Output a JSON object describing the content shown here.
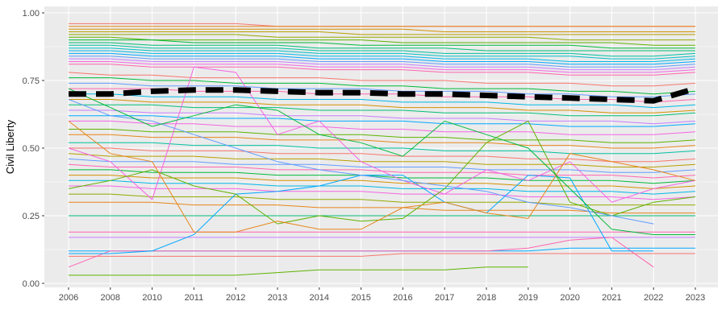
{
  "chart_data": {
    "type": "line",
    "title": "",
    "xlabel": "",
    "ylabel": "Civil Liberty",
    "x": [
      2006,
      2008,
      2010,
      2011,
      2012,
      2013,
      2014,
      2015,
      2016,
      2017,
      2018,
      2019,
      2020,
      2021,
      2022,
      2023
    ],
    "x_tick_labels": [
      "2006",
      "2008",
      "2010",
      "2011",
      "2012",
      "2013",
      "2014",
      "2015",
      "2016",
      "2017",
      "2018",
      "2019",
      "2020",
      "2021",
      "2022",
      "2023"
    ],
    "x_axis_spacing": "categorical (evenly spaced years)",
    "ylim": [
      0,
      1
    ],
    "y_ticks": [
      0.0,
      0.25,
      0.5,
      0.75,
      1.0
    ],
    "y_tick_labels": [
      "0.00",
      "0.25",
      "0.50",
      "0.75",
      "1.00"
    ],
    "grid": true,
    "legend": "none",
    "background": "#ebebeb",
    "gridline_color": "#ffffff",
    "mean_series": {
      "name": "",
      "style": "black thick dashed",
      "color": "#000000",
      "values": [
        0.7,
        0.7,
        0.71,
        0.715,
        0.715,
        0.71,
        0.705,
        0.705,
        0.7,
        0.7,
        0.695,
        0.69,
        0.685,
        0.68,
        0.675,
        0.72
      ]
    },
    "series_count_approx": 160,
    "series_note": "Many country lines with hue-based palette; values are approximate readings of representative series.",
    "series": [
      {
        "color": "#F8766D",
        "values": [
          0.96,
          0.96,
          0.96,
          0.96,
          0.96,
          0.95,
          0.95,
          0.95,
          0.95,
          0.95,
          0.95,
          0.95,
          0.95,
          0.95,
          0.95,
          0.95
        ]
      },
      {
        "color": "#E7861B",
        "values": [
          0.95,
          0.95,
          0.95,
          0.95,
          0.95,
          0.95,
          0.95,
          0.95,
          0.95,
          0.95,
          0.95,
          0.95,
          0.95,
          0.95,
          0.95,
          0.95
        ]
      },
      {
        "color": "#D39200",
        "values": [
          0.94,
          0.94,
          0.94,
          0.94,
          0.94,
          0.94,
          0.94,
          0.94,
          0.94,
          0.93,
          0.93,
          0.93,
          0.93,
          0.93,
          0.93,
          0.93
        ]
      },
      {
        "color": "#B79F00",
        "values": [
          0.93,
          0.93,
          0.93,
          0.93,
          0.93,
          0.93,
          0.93,
          0.92,
          0.92,
          0.92,
          0.92,
          0.92,
          0.92,
          0.92,
          0.92,
          0.92
        ]
      },
      {
        "color": "#93AA00",
        "values": [
          0.92,
          0.92,
          0.92,
          0.92,
          0.92,
          0.91,
          0.91,
          0.91,
          0.91,
          0.91,
          0.91,
          0.91,
          0.9,
          0.9,
          0.9,
          0.9
        ]
      },
      {
        "color": "#5EB300",
        "values": [
          0.91,
          0.91,
          0.9,
          0.9,
          0.9,
          0.9,
          0.9,
          0.9,
          0.89,
          0.89,
          0.89,
          0.89,
          0.89,
          0.89,
          0.88,
          0.88
        ]
      },
      {
        "color": "#00BA38",
        "values": [
          0.9,
          0.9,
          0.9,
          0.89,
          0.89,
          0.89,
          0.89,
          0.88,
          0.88,
          0.88,
          0.88,
          0.88,
          0.88,
          0.87,
          0.87,
          0.87
        ]
      },
      {
        "color": "#00BF74",
        "values": [
          0.89,
          0.89,
          0.88,
          0.88,
          0.88,
          0.88,
          0.87,
          0.87,
          0.87,
          0.87,
          0.86,
          0.86,
          0.86,
          0.86,
          0.86,
          0.86
        ]
      },
      {
        "color": "#00C19F",
        "values": [
          0.88,
          0.88,
          0.87,
          0.87,
          0.87,
          0.87,
          0.86,
          0.86,
          0.86,
          0.85,
          0.85,
          0.85,
          0.85,
          0.84,
          0.84,
          0.85
        ]
      },
      {
        "color": "#00BFC4",
        "values": [
          0.87,
          0.87,
          0.86,
          0.86,
          0.86,
          0.86,
          0.85,
          0.85,
          0.85,
          0.84,
          0.84,
          0.84,
          0.84,
          0.83,
          0.83,
          0.84
        ]
      },
      {
        "color": "#00B8E7",
        "values": [
          0.86,
          0.86,
          0.85,
          0.85,
          0.85,
          0.85,
          0.84,
          0.84,
          0.84,
          0.83,
          0.83,
          0.83,
          0.82,
          0.82,
          0.82,
          0.83
        ]
      },
      {
        "color": "#00A9FF",
        "values": [
          0.85,
          0.85,
          0.84,
          0.84,
          0.84,
          0.84,
          0.83,
          0.83,
          0.83,
          0.82,
          0.82,
          0.82,
          0.81,
          0.81,
          0.81,
          0.82
        ]
      },
      {
        "color": "#619CFF",
        "values": [
          0.84,
          0.84,
          0.83,
          0.83,
          0.83,
          0.83,
          0.82,
          0.82,
          0.82,
          0.81,
          0.81,
          0.81,
          0.8,
          0.8,
          0.8,
          0.81
        ]
      },
      {
        "color": "#C77CFF",
        "values": [
          0.83,
          0.83,
          0.82,
          0.82,
          0.82,
          0.82,
          0.81,
          0.81,
          0.81,
          0.8,
          0.8,
          0.8,
          0.79,
          0.79,
          0.79,
          0.8
        ]
      },
      {
        "color": "#F564E3",
        "values": [
          0.82,
          0.82,
          0.81,
          0.81,
          0.81,
          0.81,
          0.8,
          0.8,
          0.8,
          0.79,
          0.79,
          0.79,
          0.78,
          0.78,
          0.78,
          0.79
        ]
      },
      {
        "color": "#FF64B0",
        "values": [
          0.81,
          0.81,
          0.8,
          0.8,
          0.8,
          0.8,
          0.79,
          0.79,
          0.79,
          0.78,
          0.78,
          0.78,
          0.77,
          0.77,
          0.77,
          0.78
        ]
      },
      {
        "color": "#F8766D",
        "values": [
          0.78,
          0.77,
          0.77,
          0.76,
          0.76,
          0.76,
          0.76,
          0.75,
          0.75,
          0.75,
          0.74,
          0.74,
          0.74,
          0.73,
          0.73,
          0.74
        ]
      },
      {
        "color": "#00BA38",
        "values": [
          0.76,
          0.76,
          0.75,
          0.75,
          0.74,
          0.74,
          0.74,
          0.73,
          0.73,
          0.72,
          0.72,
          0.72,
          0.71,
          0.71,
          0.7,
          0.71
        ]
      },
      {
        "color": "#619CFF",
        "values": [
          0.74,
          0.74,
          0.73,
          0.73,
          0.73,
          0.72,
          0.72,
          0.72,
          0.71,
          0.71,
          0.71,
          0.7,
          0.7,
          0.69,
          0.69,
          0.7
        ]
      },
      {
        "color": "#FF64B0",
        "values": [
          0.72,
          0.72,
          0.72,
          0.71,
          0.71,
          0.71,
          0.7,
          0.7,
          0.7,
          0.69,
          0.69,
          0.69,
          0.68,
          0.68,
          0.67,
          0.68
        ]
      },
      {
        "color": "#00B8E7",
        "values": [
          0.7,
          0.7,
          0.69,
          0.69,
          0.69,
          0.68,
          0.68,
          0.68,
          0.67,
          0.67,
          0.67,
          0.66,
          0.66,
          0.66,
          0.65,
          0.66
        ]
      },
      {
        "color": "#D39200",
        "values": [
          0.68,
          0.68,
          0.67,
          0.67,
          0.67,
          0.66,
          0.66,
          0.66,
          0.65,
          0.65,
          0.65,
          0.64,
          0.64,
          0.63,
          0.63,
          0.64
        ]
      },
      {
        "color": "#00BF74",
        "values": [
          0.66,
          0.66,
          0.66,
          0.65,
          0.65,
          0.65,
          0.64,
          0.64,
          0.64,
          0.63,
          0.63,
          0.63,
          0.62,
          0.62,
          0.62,
          0.63
        ]
      },
      {
        "color": "#C77CFF",
        "values": [
          0.64,
          0.64,
          0.63,
          0.63,
          0.63,
          0.62,
          0.62,
          0.62,
          0.61,
          0.61,
          0.61,
          0.6,
          0.6,
          0.6,
          0.59,
          0.6
        ]
      },
      {
        "color": "#00A9FF",
        "values": [
          0.62,
          0.62,
          0.62,
          0.61,
          0.61,
          0.61,
          0.6,
          0.6,
          0.6,
          0.59,
          0.59,
          0.59,
          0.58,
          0.58,
          0.58,
          0.59
        ]
      },
      {
        "color": "#F564E3",
        "values": [
          0.6,
          0.6,
          0.59,
          0.59,
          0.58,
          0.58,
          0.58,
          0.57,
          0.57,
          0.56,
          0.56,
          0.56,
          0.55,
          0.55,
          0.55,
          0.56
        ]
      },
      {
        "color": "#5EB300",
        "values": [
          0.57,
          0.57,
          0.56,
          0.56,
          0.56,
          0.55,
          0.55,
          0.55,
          0.54,
          0.54,
          0.53,
          0.53,
          0.53,
          0.52,
          0.52,
          0.53
        ]
      },
      {
        "color": "#E7861B",
        "values": [
          0.55,
          0.55,
          0.54,
          0.54,
          0.54,
          0.53,
          0.53,
          0.53,
          0.52,
          0.52,
          0.52,
          0.51,
          0.51,
          0.5,
          0.5,
          0.51
        ]
      },
      {
        "color": "#00C19F",
        "values": [
          0.52,
          0.52,
          0.52,
          0.51,
          0.51,
          0.51,
          0.5,
          0.5,
          0.5,
          0.49,
          0.49,
          0.49,
          0.48,
          0.48,
          0.48,
          0.49
        ]
      },
      {
        "color": "#F8766D",
        "values": [
          0.5,
          0.5,
          0.49,
          0.49,
          0.49,
          0.48,
          0.48,
          0.48,
          0.47,
          0.47,
          0.47,
          0.46,
          0.46,
          0.45,
          0.45,
          0.46
        ]
      },
      {
        "color": "#B79F00",
        "values": [
          0.48,
          0.47,
          0.47,
          0.47,
          0.46,
          0.46,
          0.46,
          0.45,
          0.45,
          0.45,
          0.44,
          0.44,
          0.44,
          0.43,
          0.43,
          0.44
        ]
      },
      {
        "color": "#619CFF",
        "values": [
          0.46,
          0.45,
          0.45,
          0.45,
          0.44,
          0.44,
          0.44,
          0.43,
          0.43,
          0.43,
          0.42,
          0.42,
          0.42,
          0.41,
          0.41,
          0.42
        ]
      },
      {
        "color": "#FF64B0",
        "values": [
          0.44,
          0.43,
          0.43,
          0.43,
          0.43,
          0.42,
          0.42,
          0.42,
          0.41,
          0.41,
          0.41,
          0.4,
          0.4,
          0.4,
          0.39,
          0.4
        ]
      },
      {
        "color": "#00BA38",
        "values": [
          0.42,
          0.42,
          0.41,
          0.41,
          0.41,
          0.4,
          0.4,
          0.4,
          0.39,
          0.39,
          0.39,
          0.38,
          0.38,
          0.38,
          0.37,
          0.38
        ]
      },
      {
        "color": "#D39200",
        "values": [
          0.4,
          0.4,
          0.39,
          0.39,
          0.39,
          0.38,
          0.38,
          0.38,
          0.37,
          0.37,
          0.37,
          0.36,
          0.36,
          0.36,
          0.35,
          0.36
        ]
      },
      {
        "color": "#00B8E7",
        "values": [
          0.38,
          0.38,
          0.37,
          0.37,
          0.37,
          0.36,
          0.36,
          0.36,
          0.35,
          0.35,
          0.35,
          0.34,
          0.34,
          0.34,
          0.33,
          0.34
        ]
      },
      {
        "color": "#F564E3",
        "values": [
          0.36,
          0.36,
          0.35,
          0.35,
          0.35,
          0.34,
          0.34,
          0.34,
          0.33,
          0.33,
          0.33,
          0.32,
          0.32,
          0.32,
          0.31,
          0.32
        ]
      },
      {
        "color": "#93AA00",
        "values": [
          0.33,
          0.33,
          0.32,
          0.32,
          0.32,
          0.31,
          0.31,
          0.31,
          0.3,
          0.3,
          0.3,
          0.3,
          0.29,
          0.29,
          0.29,
          0.29
        ]
      },
      {
        "color": "#E7861B",
        "values": [
          0.3,
          0.3,
          0.3,
          0.29,
          0.29,
          0.29,
          0.28,
          0.28,
          0.28,
          0.27,
          0.27,
          0.27,
          0.27,
          0.26,
          0.26,
          0.26
        ]
      },
      {
        "color": "#00BF74",
        "values": [
          0.25,
          0.25,
          0.25,
          0.25,
          0.25,
          0.25,
          0.25,
          0.25,
          0.25,
          0.25,
          0.25,
          0.25,
          0.25,
          0.25,
          0.25,
          0.25
        ]
      },
      {
        "color": "#FF64B0",
        "values": [
          0.19,
          0.19,
          0.19,
          0.19,
          0.19,
          0.19,
          0.19,
          0.19,
          0.19,
          0.19,
          0.19,
          0.19,
          0.19,
          0.19,
          0.19,
          0.19
        ]
      },
      {
        "color": "#C77CFF",
        "values": [
          0.17,
          0.17,
          0.17,
          0.17,
          0.17,
          0.17,
          0.17,
          0.17,
          0.17,
          0.17,
          0.17,
          0.17,
          0.17,
          0.17,
          0.17,
          0.17
        ]
      },
      {
        "color": "#00A9FF",
        "values": [
          0.12,
          0.12,
          0.12,
          0.12,
          0.12,
          0.12,
          0.12,
          0.12,
          0.12,
          0.12,
          0.12,
          0.12,
          0.13,
          0.13,
          0.13,
          0.13
        ]
      },
      {
        "color": "#F8766D",
        "values": [
          0.1,
          0.1,
          0.1,
          0.1,
          0.1,
          0.1,
          0.1,
          0.1,
          0.11,
          0.11,
          0.11,
          0.11,
          0.11,
          0.11,
          0.11,
          0.11
        ]
      },
      {
        "color": "#5EB300",
        "values": [
          0.03,
          0.03,
          0.03,
          0.03,
          0.03,
          0.04,
          0.05,
          0.05,
          0.05,
          0.05,
          0.06,
          0.06,
          null,
          null,
          null,
          null
        ]
      },
      {
        "color": "#FF64B0",
        "values": [
          0.06,
          0.12,
          0.12,
          0.12,
          0.12,
          0.12,
          0.12,
          0.12,
          0.12,
          0.12,
          0.12,
          0.13,
          0.16,
          0.17,
          0.06,
          null
        ]
      },
      {
        "color": "#00A9FF",
        "values": [
          0.11,
          0.11,
          0.12,
          0.18,
          0.33,
          0.34,
          0.36,
          0.4,
          0.4,
          0.3,
          0.26,
          0.4,
          0.39,
          0.12,
          0.12,
          null
        ]
      },
      {
        "color": "#F564E3",
        "values": [
          0.5,
          0.45,
          0.31,
          0.8,
          0.78,
          0.55,
          0.6,
          0.45,
          0.38,
          0.33,
          0.42,
          0.38,
          0.45,
          0.3,
          0.35,
          0.38
        ]
      },
      {
        "color": "#5EB300",
        "values": [
          0.35,
          0.38,
          0.42,
          0.36,
          0.33,
          0.22,
          0.25,
          0.23,
          0.24,
          0.35,
          0.52,
          0.6,
          0.3,
          0.25,
          0.3,
          0.32
        ]
      },
      {
        "color": "#E7861B",
        "values": [
          0.6,
          0.48,
          0.45,
          0.19,
          0.19,
          0.23,
          0.2,
          0.2,
          0.28,
          0.3,
          0.26,
          0.24,
          0.48,
          0.45,
          0.42,
          0.38
        ]
      },
      {
        "color": "#619CFF",
        "values": [
          0.68,
          0.62,
          0.6,
          0.55,
          0.5,
          0.45,
          0.42,
          0.4,
          0.38,
          0.36,
          0.34,
          0.3,
          0.28,
          0.25,
          0.22,
          null
        ]
      },
      {
        "color": "#00BA38",
        "values": [
          0.72,
          0.65,
          0.58,
          0.62,
          0.66,
          0.64,
          0.55,
          0.52,
          0.47,
          0.6,
          0.55,
          0.5,
          0.35,
          0.2,
          0.18,
          0.18
        ]
      }
    ]
  }
}
